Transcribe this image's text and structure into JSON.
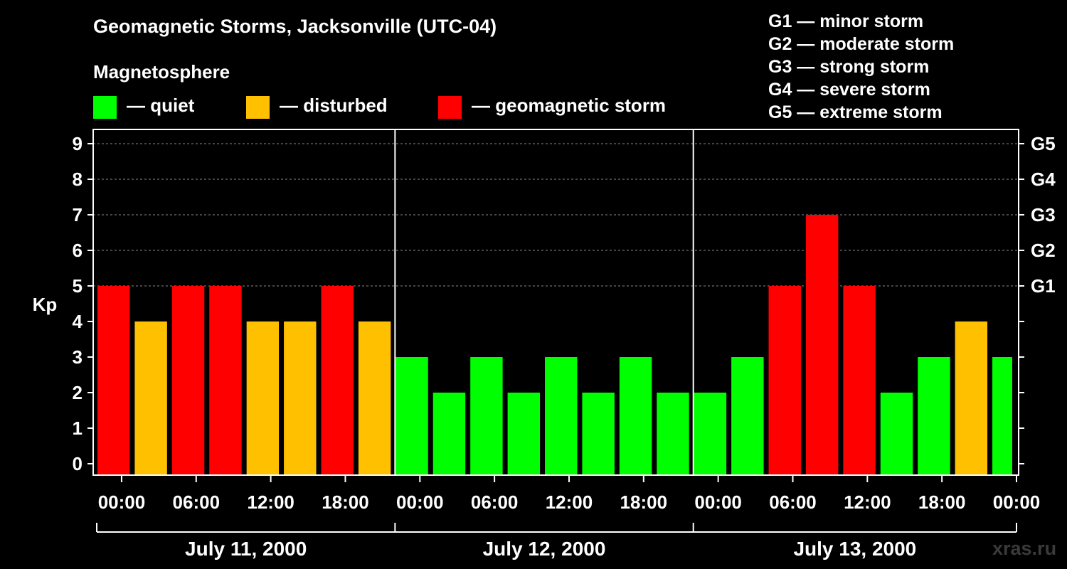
{
  "chart_data": {
    "type": "bar",
    "title": "Geomagnetic Storms, Jacksonville (UTC-04)",
    "magnetosphere_label": "Magnetosphere",
    "legend": [
      {
        "label": "— quiet",
        "color": "#00ff00"
      },
      {
        "label": "— disturbed",
        "color": "#ffc000"
      },
      {
        "label": "— geomagnetic storm",
        "color": "#ff0000"
      }
    ],
    "g_scale": [
      "G1 — minor storm",
      "G2 — moderate storm",
      "G3 — strong storm",
      "G4 — severe storm",
      "G5 — extreme storm"
    ],
    "ylabel": "Kp",
    "ylim": [
      0,
      9
    ],
    "y_ticks": [
      "0",
      "1",
      "2",
      "3",
      "4",
      "5",
      "6",
      "7",
      "8",
      "9"
    ],
    "right_ticks": [
      {
        "kp": 5,
        "label": "G1"
      },
      {
        "kp": 6,
        "label": "G2"
      },
      {
        "kp": 7,
        "label": "G3"
      },
      {
        "kp": 8,
        "label": "G4"
      },
      {
        "kp": 9,
        "label": "G5"
      }
    ],
    "x_hours_range": [
      -2,
      72
    ],
    "x_ticks": [
      {
        "hour": 0,
        "label": "00:00"
      },
      {
        "hour": 6,
        "label": "06:00"
      },
      {
        "hour": 12,
        "label": "12:00"
      },
      {
        "hour": 18,
        "label": "18:00"
      },
      {
        "hour": 24,
        "label": "00:00"
      },
      {
        "hour": 30,
        "label": "06:00"
      },
      {
        "hour": 36,
        "label": "12:00"
      },
      {
        "hour": 42,
        "label": "18:00"
      },
      {
        "hour": 48,
        "label": "00:00"
      },
      {
        "hour": 54,
        "label": "06:00"
      },
      {
        "hour": 60,
        "label": "12:00"
      },
      {
        "hour": 66,
        "label": "18:00"
      },
      {
        "hour": 72,
        "label": "00:00"
      }
    ],
    "day_dividers": [
      22,
      46
    ],
    "days": [
      {
        "label": "July 11, 2000",
        "start": -2,
        "end": 22
      },
      {
        "label": "July 12, 2000",
        "start": 22,
        "end": 46
      },
      {
        "label": "July 13, 2000",
        "start": 46,
        "end": 72
      }
    ],
    "bars": [
      {
        "start": -2,
        "end": 1,
        "kp": 5,
        "level": "storm"
      },
      {
        "start": 1,
        "end": 4,
        "kp": 4,
        "level": "disturbed"
      },
      {
        "start": 4,
        "end": 7,
        "kp": 5,
        "level": "storm"
      },
      {
        "start": 7,
        "end": 10,
        "kp": 5,
        "level": "storm"
      },
      {
        "start": 10,
        "end": 13,
        "kp": 4,
        "level": "disturbed"
      },
      {
        "start": 13,
        "end": 16,
        "kp": 4,
        "level": "disturbed"
      },
      {
        "start": 16,
        "end": 19,
        "kp": 5,
        "level": "storm"
      },
      {
        "start": 19,
        "end": 22,
        "kp": 4,
        "level": "disturbed"
      },
      {
        "start": 22,
        "end": 25,
        "kp": 3,
        "level": "quiet"
      },
      {
        "start": 25,
        "end": 28,
        "kp": 2,
        "level": "quiet"
      },
      {
        "start": 28,
        "end": 31,
        "kp": 3,
        "level": "quiet"
      },
      {
        "start": 31,
        "end": 34,
        "kp": 2,
        "level": "quiet"
      },
      {
        "start": 34,
        "end": 37,
        "kp": 3,
        "level": "quiet"
      },
      {
        "start": 37,
        "end": 40,
        "kp": 2,
        "level": "quiet"
      },
      {
        "start": 40,
        "end": 43,
        "kp": 3,
        "level": "quiet"
      },
      {
        "start": 43,
        "end": 46,
        "kp": 2,
        "level": "quiet"
      },
      {
        "start": 46,
        "end": 49,
        "kp": 2,
        "level": "quiet"
      },
      {
        "start": 49,
        "end": 52,
        "kp": 3,
        "level": "quiet"
      },
      {
        "start": 52,
        "end": 55,
        "kp": 5,
        "level": "storm"
      },
      {
        "start": 55,
        "end": 58,
        "kp": 7,
        "level": "storm"
      },
      {
        "start": 58,
        "end": 61,
        "kp": 5,
        "level": "storm"
      },
      {
        "start": 61,
        "end": 64,
        "kp": 2,
        "level": "quiet"
      },
      {
        "start": 64,
        "end": 67,
        "kp": 3,
        "level": "quiet"
      },
      {
        "start": 67,
        "end": 70,
        "kp": 4,
        "level": "disturbed"
      },
      {
        "start": 70,
        "end": 72,
        "kp": 3,
        "level": "quiet"
      }
    ],
    "level_colors": {
      "quiet": "#00ff00",
      "disturbed": "#ffc000",
      "storm": "#ff0000"
    },
    "watermark": "xras.ru"
  }
}
